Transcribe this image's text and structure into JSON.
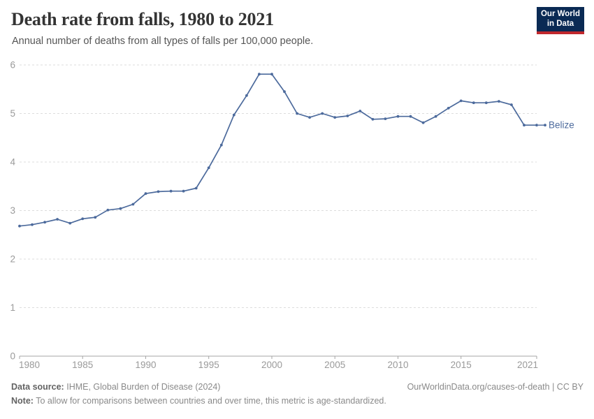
{
  "header": {
    "title": "Death rate from falls, 1980 to 2021",
    "subtitle": "Annual number of deaths from all types of falls per 100,000 people.",
    "logo": {
      "line1": "Our World",
      "line2": "in Data",
      "bg_color": "#0a2a54",
      "accent_color": "#c0282d"
    }
  },
  "chart_data": {
    "type": "line",
    "title": "Death rate from falls, 1980 to 2021",
    "xlabel": "",
    "ylabel": "",
    "x": [
      1980,
      1981,
      1982,
      1983,
      1984,
      1985,
      1986,
      1987,
      1988,
      1989,
      1990,
      1991,
      1992,
      1993,
      1994,
      1995,
      1996,
      1997,
      1998,
      1999,
      2000,
      2001,
      2002,
      2003,
      2004,
      2005,
      2006,
      2007,
      2008,
      2009,
      2010,
      2011,
      2012,
      2013,
      2014,
      2015,
      2016,
      2017,
      2018,
      2019,
      2020,
      2021
    ],
    "series": [
      {
        "name": "Belize",
        "color": "#4c6a9c",
        "values": [
          2.68,
          2.71,
          2.76,
          2.82,
          2.74,
          2.83,
          2.86,
          3.01,
          3.04,
          3.13,
          3.35,
          3.39,
          3.4,
          3.4,
          3.46,
          3.88,
          4.35,
          4.97,
          5.37,
          5.81,
          5.81,
          5.45,
          5.0,
          4.92,
          5.0,
          4.92,
          4.95,
          5.05,
          4.88,
          4.89,
          4.94,
          4.94,
          4.81,
          4.94,
          5.11,
          5.26,
          5.22,
          5.22,
          5.25,
          5.18,
          4.76,
          4.76
        ]
      }
    ],
    "xlim": [
      1980,
      2021
    ],
    "ylim": [
      0,
      6
    ],
    "xticks": [
      1980,
      1985,
      1990,
      1995,
      2000,
      2005,
      2010,
      2015,
      2021
    ],
    "yticks": [
      0,
      1,
      2,
      3,
      4,
      5,
      6
    ],
    "grid": "horizontal-dashed",
    "legend_position": "end-of-line-label",
    "colors": {
      "grid": "#dddddd",
      "axis": "#a5a5a5",
      "tick_label": "#9a9a9a"
    }
  },
  "footer": {
    "source_label": "Data source:",
    "source_text": "IHME, Global Burden of Disease (2024)",
    "note_label": "Note:",
    "note_text": "To allow for comparisons between countries and over time, this metric is age-standardized.",
    "link": "OurWorldinData.org/causes-of-death | CC BY"
  }
}
